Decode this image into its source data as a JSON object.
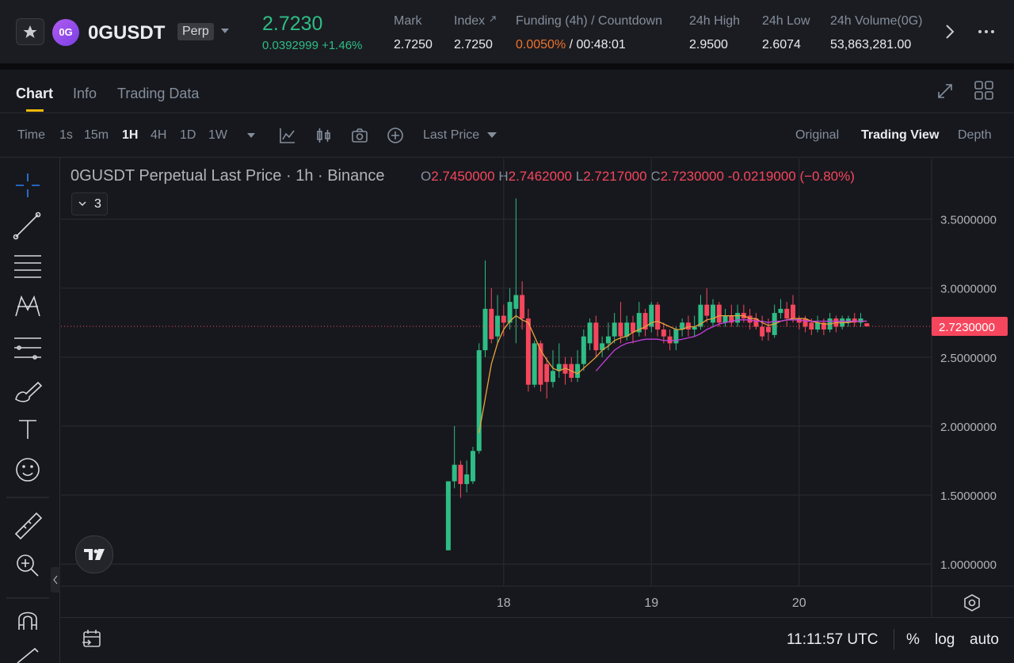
{
  "header": {
    "logo_text": "0G",
    "symbol": "0GUSDT",
    "badge": "Perp",
    "price": "2.7230",
    "change": "0.0392999",
    "change_pct": "+1.46%",
    "stats": [
      {
        "label": "Mark",
        "value": "2.7250"
      },
      {
        "label": "Index",
        "value": "2.7250"
      },
      {
        "label": "Funding (4h) / Countdown",
        "value": "0.0050%",
        "extra": "/ 00:48:01"
      },
      {
        "label": "24h High",
        "value": "2.9500"
      },
      {
        "label": "24h Low",
        "value": "2.6074"
      },
      {
        "label": "24h Volume(0G)",
        "value": "53,863,281.00"
      }
    ]
  },
  "tabs": [
    "Chart",
    "Info",
    "Trading Data"
  ],
  "intervals": [
    "Time",
    "1s",
    "15m",
    "1H",
    "4H",
    "1D",
    "1W"
  ],
  "price_type": "Last Price",
  "views": [
    "Original",
    "Trading View",
    "Depth"
  ],
  "legend": {
    "title": "0GUSDT Perpetual Last Price · 1h · Binance",
    "o": "O",
    "o_value": "2.7450000",
    "h": "H",
    "h_value": "2.7462000",
    "l": "L",
    "l_value": "2.7217000",
    "c": "C",
    "c_value": "2.7230000",
    "change": "-0.0219000 (−0.80%)"
  },
  "indicator_count": "3",
  "footer": {
    "time": "11:11:57 UTC",
    "pct": "%",
    "log": "log",
    "auto": "auto"
  },
  "chart_data": {
    "type": "candlestick",
    "categories": [
      null,
      null,
      null,
      null,
      null,
      null,
      null,
      null,
      null,
      "18",
      null,
      null,
      null,
      null,
      null,
      null,
      null,
      null,
      null,
      null,
      null,
      null,
      null,
      null,
      null,
      null,
      null,
      null,
      null,
      null,
      null,
      null,
      null,
      "19",
      null,
      null,
      null,
      null,
      null,
      null,
      null,
      null,
      null,
      null,
      null,
      null,
      null,
      null,
      null,
      null,
      null,
      null,
      null,
      null,
      null,
      null,
      null,
      "20",
      null,
      null,
      null,
      null,
      null,
      null,
      null,
      null,
      null,
      null,
      null
    ],
    "open": [
      1.1,
      1.6,
      1.72,
      1.58,
      1.6,
      1.82,
      2.55,
      2.85,
      2.65,
      2.8,
      2.75,
      2.85,
      2.95,
      2.78,
      2.3,
      2.6,
      2.45,
      2.32,
      2.4,
      2.45,
      2.45,
      2.35,
      2.45,
      2.6,
      2.75,
      2.55,
      2.6,
      2.65,
      2.75,
      2.65,
      2.75,
      2.68,
      2.82,
      2.72,
      2.88,
      2.7,
      2.65,
      2.6,
      2.7,
      2.75,
      2.7,
      2.72,
      2.88,
      2.75,
      2.88,
      2.75,
      2.8,
      2.75,
      2.82,
      2.8,
      2.78,
      2.72,
      2.72,
      2.66,
      2.82,
      2.85,
      2.88,
      2.78,
      2.78,
      2.75,
      2.7,
      2.75,
      2.7,
      2.78,
      2.72,
      2.75,
      2.78,
      2.75,
      2.745
    ],
    "high": [
      1.6,
      2.0,
      1.75,
      1.75,
      1.85,
      2.6,
      3.2,
      3.0,
      2.95,
      2.88,
      3.0,
      3.65,
      3.05,
      2.85,
      2.62,
      2.62,
      2.5,
      2.55,
      2.6,
      2.5,
      2.5,
      2.55,
      2.7,
      2.78,
      2.8,
      2.65,
      2.75,
      2.82,
      2.9,
      2.8,
      2.8,
      2.9,
      2.85,
      2.9,
      2.9,
      2.75,
      2.7,
      2.72,
      2.78,
      2.8,
      2.8,
      2.95,
      3.0,
      2.92,
      2.9,
      2.85,
      2.88,
      2.88,
      2.88,
      2.85,
      2.82,
      2.8,
      2.78,
      2.88,
      2.92,
      2.9,
      2.95,
      2.8,
      2.8,
      2.78,
      2.8,
      2.78,
      2.82,
      2.8,
      2.8,
      2.8,
      2.82,
      2.82,
      2.7462
    ],
    "low": [
      1.1,
      1.55,
      1.48,
      1.52,
      1.58,
      1.8,
      2.5,
      2.6,
      2.6,
      2.65,
      2.7,
      2.6,
      2.7,
      2.25,
      2.28,
      2.25,
      2.2,
      2.28,
      2.35,
      2.3,
      2.32,
      2.32,
      2.4,
      2.55,
      2.5,
      2.5,
      2.55,
      2.6,
      2.6,
      2.62,
      2.6,
      2.65,
      2.65,
      2.68,
      2.65,
      2.6,
      2.55,
      2.55,
      2.65,
      2.65,
      2.65,
      2.7,
      2.75,
      2.72,
      2.72,
      2.72,
      2.72,
      2.72,
      2.75,
      2.7,
      2.7,
      2.62,
      2.62,
      2.64,
      2.78,
      2.72,
      2.75,
      2.7,
      2.68,
      2.66,
      2.68,
      2.66,
      2.68,
      2.68,
      2.7,
      2.72,
      2.72,
      2.72,
      2.7217
    ],
    "close": [
      1.6,
      1.72,
      1.58,
      1.65,
      1.82,
      2.55,
      2.85,
      2.63,
      2.8,
      2.75,
      2.9,
      2.95,
      2.78,
      2.3,
      2.6,
      2.3,
      2.32,
      2.4,
      2.45,
      2.38,
      2.35,
      2.45,
      2.65,
      2.75,
      2.55,
      2.6,
      2.65,
      2.75,
      2.65,
      2.75,
      2.68,
      2.82,
      2.7,
      2.88,
      2.7,
      2.65,
      2.6,
      2.7,
      2.75,
      2.7,
      2.72,
      2.88,
      2.8,
      2.88,
      2.75,
      2.8,
      2.75,
      2.82,
      2.78,
      2.75,
      2.72,
      2.65,
      2.68,
      2.82,
      2.85,
      2.78,
      2.78,
      2.75,
      2.72,
      2.7,
      2.75,
      2.7,
      2.78,
      2.72,
      2.78,
      2.78,
      2.75,
      2.78,
      2.723
    ],
    "ma_lines": [
      {
        "color": "#e8a33d",
        "values": [
          null,
          null,
          null,
          null,
          null,
          1.95,
          2.2,
          2.45,
          2.6,
          2.7,
          2.76,
          2.8,
          2.77,
          2.75,
          2.65,
          2.55,
          2.48,
          2.42,
          2.4,
          2.42,
          2.4,
          2.38,
          2.42,
          2.46,
          2.5,
          2.55,
          2.58,
          2.62,
          2.64,
          2.65,
          2.68,
          2.7,
          2.72,
          2.75,
          2.76,
          2.74,
          2.72,
          2.7,
          2.7,
          2.72,
          2.72,
          2.74,
          2.77,
          2.78,
          2.8,
          2.8,
          2.8,
          2.8,
          2.8,
          2.78,
          2.78,
          2.75,
          2.73,
          2.74,
          2.76,
          2.77,
          2.78,
          2.78,
          2.78,
          2.76,
          2.75,
          2.74,
          2.74,
          2.75,
          2.75,
          2.75,
          2.76,
          2.76,
          2.76
        ]
      },
      {
        "color": "#c53fe0",
        "values": [
          null,
          null,
          null,
          null,
          null,
          null,
          null,
          null,
          null,
          null,
          null,
          null,
          null,
          null,
          null,
          null,
          null,
          null,
          null,
          null,
          null,
          null,
          null,
          null,
          2.4,
          2.45,
          2.5,
          2.55,
          2.58,
          2.6,
          2.61,
          2.62,
          2.63,
          2.63,
          2.63,
          2.62,
          2.62,
          2.62,
          2.63,
          2.64,
          2.65,
          2.67,
          2.7,
          2.72,
          2.74,
          2.75,
          2.76,
          2.77,
          2.77,
          2.77,
          2.76,
          2.76,
          2.75,
          2.76,
          2.76,
          2.77,
          2.77,
          2.77,
          2.76,
          2.76,
          2.76,
          2.76,
          2.76,
          2.76,
          2.76,
          2.76,
          2.76,
          2.76,
          2.76
        ]
      }
    ],
    "up_color": "#2ebd85",
    "down_color": "#f6465d",
    "ylim": [
      0.84,
      3.94
    ],
    "yticks": [
      {
        "value": 1,
        "label": "1.0000000"
      },
      {
        "value": 1.5,
        "label": "1.5000000"
      },
      {
        "value": 2,
        "label": "2.0000000"
      },
      {
        "value": 2.5,
        "label": "2.5000000"
      },
      {
        "value": 3,
        "label": "3.0000000"
      },
      {
        "value": 3.5,
        "label": "3.5000000"
      }
    ],
    "grid": true,
    "last_price_label": "2.7230000"
  }
}
